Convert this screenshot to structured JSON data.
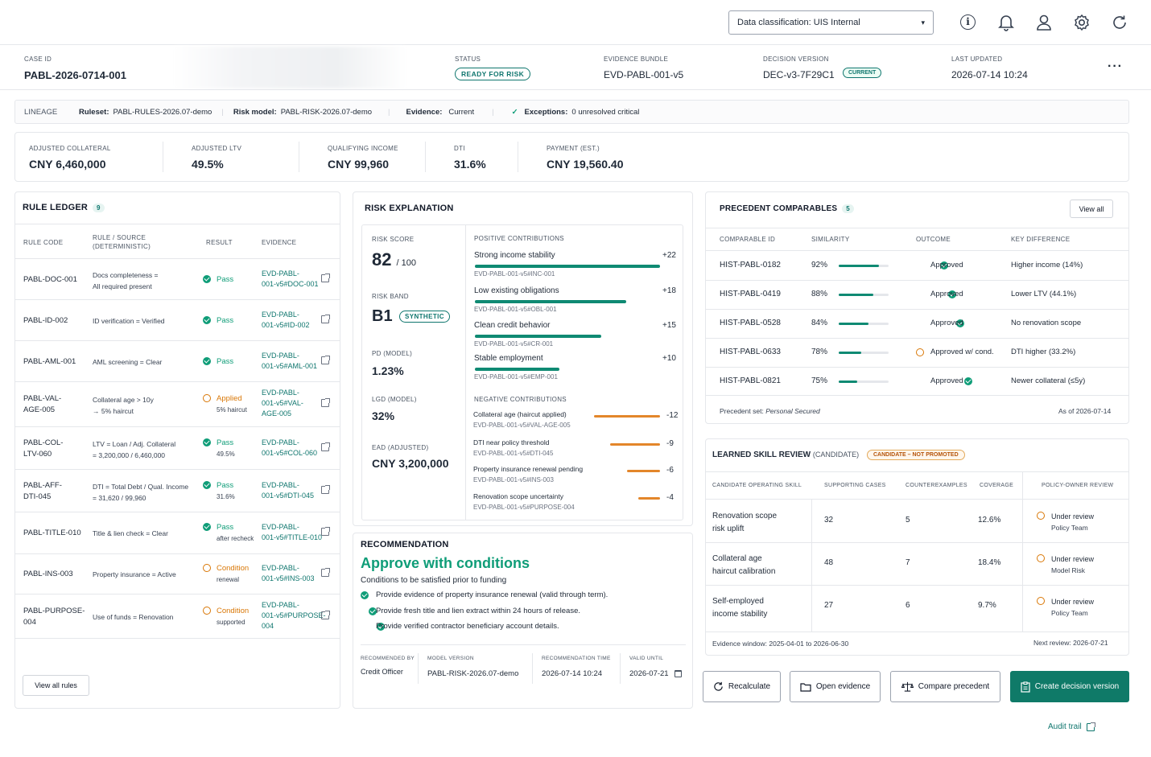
{
  "top": {
    "classification": "Data classification: UIS Internal"
  },
  "case": {
    "id_label": "CASE ID",
    "id": "PABL-2026-0714-001",
    "status_label": "STATUS",
    "status": "READY FOR RISK",
    "bundle_label": "EVIDENCE BUNDLE",
    "bundle": "EVD-PABL-001-v5",
    "version_label": "DECISION VERSION",
    "version": "DEC-v3-7F29C1",
    "version_badge": "CURRENT",
    "updated_label": "LAST UPDATED",
    "updated": "2026-07-14 10:24"
  },
  "lineage": {
    "label": "LINEAGE",
    "ruleset_label": "Ruleset:",
    "ruleset": "PABL-RULES-2026.07-demo",
    "risk_label": "Risk model:",
    "risk": "PABL-RISK-2026.07-demo",
    "evidence_label": "Evidence:",
    "evidence": "Current",
    "exceptions_label": "Exceptions:",
    "exceptions": "0 unresolved critical"
  },
  "metrics": [
    {
      "label": "ADJUSTED COLLATERAL",
      "value": "CNY 6,460,000"
    },
    {
      "label": "ADJUSTED LTV",
      "value": "49.5%"
    },
    {
      "label": "QUALIFYING INCOME",
      "value": "CNY 99,960"
    },
    {
      "label": "DTI",
      "value": "31.6%"
    },
    {
      "label": "PAYMENT (EST.)",
      "value": "CNY 19,560.40"
    }
  ],
  "ledger": {
    "title": "RULE LEDGER",
    "count": "9",
    "col_code": "RULE CODE",
    "col_rule": "RULE / SOURCE",
    "col_rule2": "(DETERMINISTIC)",
    "col_result": "RESULT",
    "col_evidence": "EVIDENCE",
    "rows": [
      {
        "code1": "PABL-DOC-001",
        "code2": "",
        "rule1": "Docs completeness =",
        "rule2": "All required present",
        "result": "Pass",
        "sub": "",
        "ev1": "EVD-PABL-",
        "ev2": "001-v5#DOC-001",
        "ev3": ""
      },
      {
        "code1": "PABL-ID-002",
        "code2": "",
        "rule1": "ID verification = Verified",
        "rule2": "",
        "result": "Pass",
        "sub": "",
        "ev1": "EVD-PABL-",
        "ev2": "001-v5#ID-002",
        "ev3": ""
      },
      {
        "code1": "PABL-AML-001",
        "code2": "",
        "rule1": "AML screening = Clear",
        "rule2": "",
        "result": "Pass",
        "sub": "",
        "ev1": "EVD-PABL-",
        "ev2": "001-v5#AML-001",
        "ev3": ""
      },
      {
        "code1": "PABL-VAL-",
        "code2": "AGE-005",
        "rule1": "Collateral age > 10y",
        "rule2": "→ 5% haircut",
        "result": "Applied",
        "sub": "5% haircut",
        "ev1": "EVD-PABL-",
        "ev2": "001-v5#VAL-",
        "ev3": "AGE-005"
      },
      {
        "code1": "PABL-COL-",
        "code2": "LTV-060",
        "rule1": "LTV = Loan / Adj. Collateral",
        "rule2": "= 3,200,000 / 6,460,000",
        "result": "Pass",
        "sub": "49.5%",
        "ev1": "EVD-PABL-",
        "ev2": "001-v5#COL-060",
        "ev3": ""
      },
      {
        "code1": "PABL-AFF-",
        "code2": "DTI-045",
        "rule1": "DTI = Total Debt / Qual. Income",
        "rule2": "= 31,620 / 99,960",
        "result": "Pass",
        "sub": "31.6%",
        "ev1": "EVD-PABL-",
        "ev2": "001-v5#DTI-045",
        "ev3": ""
      },
      {
        "code1": "PABL-TITLE-010",
        "code2": "",
        "rule1": "Title & lien check = Clear",
        "rule2": "",
        "result": "Pass",
        "sub": "after recheck",
        "ev1": "EVD-PABL-",
        "ev2": "001-v5#TITLE-010",
        "ev3": ""
      },
      {
        "code1": "PABL-INS-003",
        "code2": "",
        "rule1": "Property insurance = Active",
        "rule2": "",
        "result": "Condition",
        "sub": "renewal",
        "ev1": "EVD-PABL-",
        "ev2": "001-v5#INS-003",
        "ev3": ""
      },
      {
        "code1": "PABL-PURPOSE-",
        "code2": "004",
        "rule1": "Use of funds = Renovation",
        "rule2": "",
        "result": "Condition",
        "sub": "supported",
        "ev1": "EVD-PABL-",
        "ev2": "001-v5#PURPOSE-",
        "ev3": "004"
      }
    ],
    "view_all": "View all rules"
  },
  "risk": {
    "title": "RISK EXPLANATION",
    "score_label": "RISK SCORE",
    "score": "82",
    "score_max": "/ 100",
    "band_label": "RISK BAND",
    "band": "B1",
    "band_badge": "SYNTHETIC",
    "pd_label": "PD (MODEL)",
    "pd": "1.23%",
    "lgd_label": "LGD (MODEL)",
    "lgd": "32%",
    "ead_label": "EAD (ADJUSTED)",
    "ead": "CNY 3,200,000",
    "pos_title": "POSITIVE CONTRIBUTIONS",
    "positive": [
      {
        "name": "Strong income stability",
        "value": "+22",
        "ref": "EVD-PABL-001-v5#INC-001",
        "magnitude": 22
      },
      {
        "name": "Low existing obligations",
        "value": "+18",
        "ref": "EVD-PABL-001-v5#OBL-001",
        "magnitude": 18
      },
      {
        "name": "Clean credit behavior",
        "value": "+15",
        "ref": "EVD-PABL-001-v5#CR-001",
        "magnitude": 15
      },
      {
        "name": "Stable employment",
        "value": "+10",
        "ref": "EVD-PABL-001-v5#EMP-001",
        "magnitude": 10
      }
    ],
    "neg_title": "NEGATIVE CONTRIBUTIONS",
    "negative": [
      {
        "name": "Collateral age (haircut applied)",
        "value": "-12",
        "ref": "EVD-PABL-001-v5#VAL-AGE-005",
        "magnitude": 12
      },
      {
        "name": "DTI near policy threshold",
        "value": "-9",
        "ref": "EVD-PABL-001-v5#DTI-045",
        "magnitude": 9
      },
      {
        "name": "Property insurance renewal pending",
        "value": "-6",
        "ref": "EVD-PABL-001-v5#INS-003",
        "magnitude": 6
      },
      {
        "name": "Renovation scope uncertainty",
        "value": "-4",
        "ref": "EVD-PABL-001-v5#PURPOSE-004",
        "magnitude": 4
      }
    ]
  },
  "recommendation": {
    "title": "RECOMMENDATION",
    "headline": "Approve with conditions",
    "subtitle": "Conditions to be satisfied prior to funding",
    "conditions": [
      "Provide evidence of property insurance renewal (valid through term).",
      "Provide fresh title and lien extract within 24 hours of release.",
      "Provide verified contractor beneficiary account details."
    ],
    "by_label": "RECOMMENDED BY",
    "by": "Credit Officer",
    "model_label": "MODEL VERSION",
    "model": "PABL-RISK-2026.07-demo",
    "time_label": "RECOMMENDATION TIME",
    "time": "2026-07-14 10:24",
    "valid_label": "VALID UNTIL",
    "valid": "2026-07-21"
  },
  "precedents": {
    "title": "PRECEDENT COMPARABLES",
    "count": "5",
    "view_all": "View all",
    "col_id": "COMPARABLE ID",
    "col_sim": "SIMILARITY",
    "col_outcome": "OUTCOME",
    "col_diff": "KEY DIFFERENCE",
    "rows": [
      {
        "id": "HIST-PABL-0182",
        "sim": "92%",
        "sim_value": 92,
        "outcome": "Approved",
        "status": "ok",
        "diff": "Higher income (14%)"
      },
      {
        "id": "HIST-PABL-0419",
        "sim": "88%",
        "sim_value": 88,
        "outcome": "Approved",
        "status": "ok",
        "diff": "Lower LTV (44.1%)"
      },
      {
        "id": "HIST-PABL-0528",
        "sim": "84%",
        "sim_value": 84,
        "outcome": "Approved",
        "status": "ok",
        "diff": "No renovation scope"
      },
      {
        "id": "HIST-PABL-0633",
        "sim": "78%",
        "sim_value": 78,
        "outcome": "Approved w/ cond.",
        "status": "warn",
        "diff": "DTI higher (33.2%)"
      },
      {
        "id": "HIST-PABL-0821",
        "sim": "75%",
        "sim_value": 75,
        "outcome": "Approved",
        "status": "ok",
        "diff": "Newer collateral (≤5y)"
      }
    ],
    "set_label": "Precedent set:",
    "set": "Personal Secured",
    "as_of": "As of 2026-07-14"
  },
  "skills": {
    "title": "LEARNED SKILL REVIEW",
    "subtitle": "(CANDIDATE)",
    "badge": "CANDIDATE – NOT PROMOTED",
    "col_skill": "CANDIDATE OPERATING SKILL",
    "col_support": "SUPPORTING CASES",
    "col_counter": "COUNTEREXAMPLES",
    "col_cov": "COVERAGE",
    "col_review": "POLICY-OWNER REVIEW",
    "rows": [
      {
        "skill1": "Renovation scope",
        "skill2": "risk uplift",
        "support": "32",
        "counter": "5",
        "coverage": "12.6%",
        "review": "Under review",
        "owner": "Policy Team"
      },
      {
        "skill1": "Collateral age",
        "skill2": "haircut calibration",
        "support": "48",
        "counter": "7",
        "coverage": "18.4%",
        "review": "Under review",
        "owner": "Model Risk"
      },
      {
        "skill1": "Self-employed",
        "skill2": "income stability",
        "support": "27",
        "counter": "6",
        "coverage": "9.7%",
        "review": "Under review",
        "owner": "Policy Team"
      }
    ],
    "window": "Evidence window: 2025-04-01 to 2026-06-30",
    "next": "Next review: 2026-07-21"
  },
  "actions": {
    "recalc": "Recalculate",
    "open": "Open evidence",
    "compare": "Compare precedent",
    "create": "Create decision version",
    "audit": "Audit trail"
  },
  "colors": {
    "accent": "#0f766e",
    "warn": "#d97706",
    "primary_btn": "#0f7a68"
  }
}
